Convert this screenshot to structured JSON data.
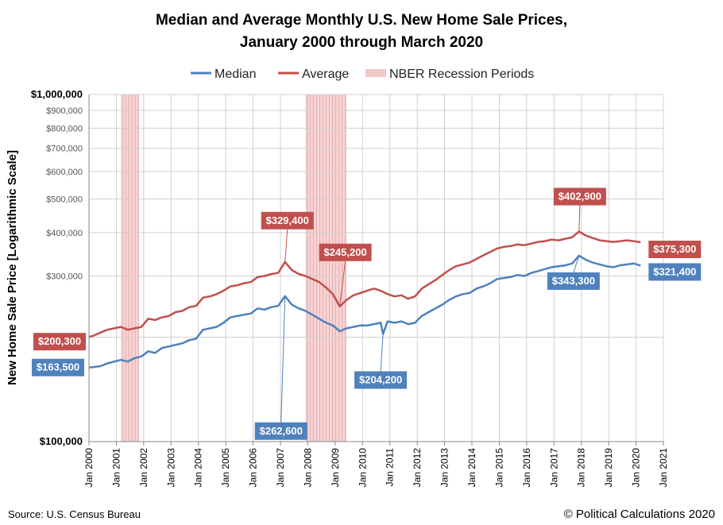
{
  "chart_data": {
    "type": "line",
    "title_line1": "Median and Average Monthly U.S. New Home Sale Prices,",
    "title_line2": "January 2000 through March 2020",
    "ylabel": "New Home Sale Price [Logarithmic Scale]",
    "xlabel": "",
    "yscale": "log",
    "ylim": [
      100000,
      1000000
    ],
    "xlim": [
      "2000-01",
      "2021-01"
    ],
    "grid": true,
    "legend_position": "top-center",
    "y_ticks": [
      {
        "value": 100000,
        "label": "$100,000",
        "style": "major"
      },
      {
        "value": 200000,
        "label": "$200,000",
        "style": "minor"
      },
      {
        "value": 300000,
        "label": "$300,000",
        "style": "minor"
      },
      {
        "value": 400000,
        "label": "$400,000",
        "style": "minor"
      },
      {
        "value": 500000,
        "label": "$500,000",
        "style": "minor"
      },
      {
        "value": 600000,
        "label": "$600,000",
        "style": "minor"
      },
      {
        "value": 700000,
        "label": "$700,000",
        "style": "minor"
      },
      {
        "value": 800000,
        "label": "$800,000",
        "style": "minor"
      },
      {
        "value": 900000,
        "label": "$900,000",
        "style": "minor"
      },
      {
        "value": 1000000,
        "label": "$1,000,000",
        "style": "major"
      }
    ],
    "x_ticks": [
      "Jan 2000",
      "Jan 2001",
      "Jan 2002",
      "Jan 2003",
      "Jan 2004",
      "Jan 2005",
      "Jan 2006",
      "Jan 2007",
      "Jan 2008",
      "Jan 2009",
      "Jan 2010",
      "Jan 2011",
      "Jan 2012",
      "Jan 2013",
      "Jan 2014",
      "Jan 2015",
      "Jan 2016",
      "Jan 2017",
      "Jan 2018",
      "Jan 2019",
      "Jan 2020",
      "Jan 2021"
    ],
    "legend": [
      {
        "label": "Median",
        "color": "#4f81bd",
        "kind": "line"
      },
      {
        "label": "Average",
        "color": "#c0504d",
        "kind": "line"
      },
      {
        "label": "NBER Recession Periods",
        "color": "#f2c8c8",
        "kind": "band"
      }
    ],
    "recessions": [
      {
        "start": "2001-03",
        "end": "2001-11"
      },
      {
        "start": "2007-12",
        "end": "2009-06"
      }
    ],
    "series": [
      {
        "name": "Median",
        "color": "#4f81bd",
        "points": [
          [
            "2000-01",
            163500
          ],
          [
            "2000-03",
            164000
          ],
          [
            "2000-06",
            165000
          ],
          [
            "2000-09",
            168000
          ],
          [
            "2000-12",
            170000
          ],
          [
            "2001-03",
            172000
          ],
          [
            "2001-06",
            170000
          ],
          [
            "2001-09",
            174000
          ],
          [
            "2001-12",
            176000
          ],
          [
            "2002-03",
            182000
          ],
          [
            "2002-06",
            180000
          ],
          [
            "2002-09",
            186000
          ],
          [
            "2002-12",
            188000
          ],
          [
            "2003-03",
            190000
          ],
          [
            "2003-06",
            192000
          ],
          [
            "2003-09",
            196000
          ],
          [
            "2003-12",
            198000
          ],
          [
            "2004-03",
            210000
          ],
          [
            "2004-06",
            212000
          ],
          [
            "2004-09",
            214000
          ],
          [
            "2004-12",
            220000
          ],
          [
            "2005-03",
            228000
          ],
          [
            "2005-06",
            230000
          ],
          [
            "2005-09",
            232000
          ],
          [
            "2005-12",
            234000
          ],
          [
            "2006-03",
            242000
          ],
          [
            "2006-06",
            240000
          ],
          [
            "2006-09",
            244000
          ],
          [
            "2006-12",
            246000
          ],
          [
            "2007-03",
            262600
          ],
          [
            "2007-06",
            248000
          ],
          [
            "2007-09",
            242000
          ],
          [
            "2007-12",
            238000
          ],
          [
            "2008-03",
            232000
          ],
          [
            "2008-06",
            226000
          ],
          [
            "2008-09",
            220000
          ],
          [
            "2008-12",
            216000
          ],
          [
            "2009-03",
            208000
          ],
          [
            "2009-06",
            212000
          ],
          [
            "2009-09",
            214000
          ],
          [
            "2009-12",
            216000
          ],
          [
            "2010-03",
            216000
          ],
          [
            "2010-06",
            218000
          ],
          [
            "2010-09",
            220000
          ],
          [
            "2010-10",
            204200
          ],
          [
            "2010-12",
            222000
          ],
          [
            "2011-03",
            220000
          ],
          [
            "2011-06",
            222000
          ],
          [
            "2011-09",
            218000
          ],
          [
            "2011-12",
            220000
          ],
          [
            "2012-03",
            230000
          ],
          [
            "2012-06",
            236000
          ],
          [
            "2012-09",
            242000
          ],
          [
            "2012-12",
            248000
          ],
          [
            "2013-03",
            256000
          ],
          [
            "2013-06",
            262000
          ],
          [
            "2013-09",
            266000
          ],
          [
            "2013-12",
            268000
          ],
          [
            "2014-03",
            276000
          ],
          [
            "2014-06",
            280000
          ],
          [
            "2014-09",
            286000
          ],
          [
            "2014-12",
            294000
          ],
          [
            "2015-03",
            296000
          ],
          [
            "2015-06",
            298000
          ],
          [
            "2015-09",
            302000
          ],
          [
            "2015-12",
            300000
          ],
          [
            "2016-03",
            306000
          ],
          [
            "2016-06",
            310000
          ],
          [
            "2016-09",
            314000
          ],
          [
            "2016-12",
            318000
          ],
          [
            "2017-03",
            320000
          ],
          [
            "2017-06",
            322000
          ],
          [
            "2017-09",
            326000
          ],
          [
            "2017-12",
            343300
          ],
          [
            "2018-03",
            334000
          ],
          [
            "2018-06",
            328000
          ],
          [
            "2018-09",
            324000
          ],
          [
            "2018-12",
            320000
          ],
          [
            "2019-03",
            318000
          ],
          [
            "2019-06",
            322000
          ],
          [
            "2019-09",
            324000
          ],
          [
            "2019-12",
            326000
          ],
          [
            "2020-03",
            321400
          ]
        ]
      },
      {
        "name": "Average",
        "color": "#c0504d",
        "points": [
          [
            "2000-01",
            200300
          ],
          [
            "2000-03",
            202000
          ],
          [
            "2000-06",
            206000
          ],
          [
            "2000-09",
            210000
          ],
          [
            "2000-12",
            212000
          ],
          [
            "2001-03",
            214000
          ],
          [
            "2001-06",
            210000
          ],
          [
            "2001-09",
            212000
          ],
          [
            "2001-12",
            214000
          ],
          [
            "2002-03",
            226000
          ],
          [
            "2002-06",
            224000
          ],
          [
            "2002-09",
            228000
          ],
          [
            "2002-12",
            230000
          ],
          [
            "2003-03",
            236000
          ],
          [
            "2003-06",
            238000
          ],
          [
            "2003-09",
            244000
          ],
          [
            "2003-12",
            246000
          ],
          [
            "2004-03",
            260000
          ],
          [
            "2004-06",
            262000
          ],
          [
            "2004-09",
            266000
          ],
          [
            "2004-12",
            272000
          ],
          [
            "2005-03",
            280000
          ],
          [
            "2005-06",
            282000
          ],
          [
            "2005-09",
            286000
          ],
          [
            "2005-12",
            288000
          ],
          [
            "2006-03",
            298000
          ],
          [
            "2006-06",
            300000
          ],
          [
            "2006-09",
            304000
          ],
          [
            "2006-12",
            306000
          ],
          [
            "2007-03",
            329400
          ],
          [
            "2007-06",
            312000
          ],
          [
            "2007-09",
            304000
          ],
          [
            "2007-12",
            300000
          ],
          [
            "2008-03",
            294000
          ],
          [
            "2008-06",
            288000
          ],
          [
            "2008-09",
            278000
          ],
          [
            "2008-12",
            266000
          ],
          [
            "2009-03",
            245200
          ],
          [
            "2009-06",
            256000
          ],
          [
            "2009-09",
            264000
          ],
          [
            "2009-12",
            268000
          ],
          [
            "2010-03",
            272000
          ],
          [
            "2010-06",
            276000
          ],
          [
            "2010-09",
            272000
          ],
          [
            "2010-12",
            266000
          ],
          [
            "2011-03",
            262000
          ],
          [
            "2011-06",
            264000
          ],
          [
            "2011-09",
            258000
          ],
          [
            "2011-12",
            262000
          ],
          [
            "2012-03",
            276000
          ],
          [
            "2012-06",
            284000
          ],
          [
            "2012-09",
            292000
          ],
          [
            "2012-12",
            302000
          ],
          [
            "2013-03",
            312000
          ],
          [
            "2013-06",
            320000
          ],
          [
            "2013-09",
            324000
          ],
          [
            "2013-12",
            328000
          ],
          [
            "2014-03",
            336000
          ],
          [
            "2014-06",
            344000
          ],
          [
            "2014-09",
            352000
          ],
          [
            "2014-12",
            360000
          ],
          [
            "2015-03",
            364000
          ],
          [
            "2015-06",
            366000
          ],
          [
            "2015-09",
            370000
          ],
          [
            "2015-12",
            368000
          ],
          [
            "2016-03",
            372000
          ],
          [
            "2016-06",
            376000
          ],
          [
            "2016-09",
            378000
          ],
          [
            "2016-12",
            382000
          ],
          [
            "2017-03",
            380000
          ],
          [
            "2017-06",
            384000
          ],
          [
            "2017-09",
            388000
          ],
          [
            "2017-12",
            402900
          ],
          [
            "2018-03",
            392000
          ],
          [
            "2018-06",
            386000
          ],
          [
            "2018-09",
            380000
          ],
          [
            "2018-12",
            378000
          ],
          [
            "2019-03",
            376000
          ],
          [
            "2019-06",
            378000
          ],
          [
            "2019-09",
            380000
          ],
          [
            "2019-12",
            378000
          ],
          [
            "2020-03",
            375300
          ]
        ]
      }
    ],
    "annotations": [
      {
        "label": "$200,300",
        "series": "Average",
        "x": "2000-01",
        "value": 200300
      },
      {
        "label": "$163,500",
        "series": "Median",
        "x": "2000-01",
        "value": 163500
      },
      {
        "label": "$329,400",
        "series": "Average",
        "x": "2007-03",
        "value": 329400
      },
      {
        "label": "$262,600",
        "series": "Median",
        "x": "2007-03",
        "value": 262600
      },
      {
        "label": "$245,200",
        "series": "Average",
        "x": "2009-03",
        "value": 245200
      },
      {
        "label": "$204,200",
        "series": "Median",
        "x": "2010-10",
        "value": 204200
      },
      {
        "label": "$402,900",
        "series": "Average",
        "x": "2017-12",
        "value": 402900
      },
      {
        "label": "$343,300",
        "series": "Median",
        "x": "2017-12",
        "value": 343300
      },
      {
        "label": "$375,300",
        "series": "Average",
        "x": "2020-03",
        "value": 375300
      },
      {
        "label": "$321,400",
        "series": "Median",
        "x": "2020-03",
        "value": 321400
      }
    ],
    "source": "Source: U.S. Census Bureau",
    "credit": "© Political Calculations 2020"
  }
}
